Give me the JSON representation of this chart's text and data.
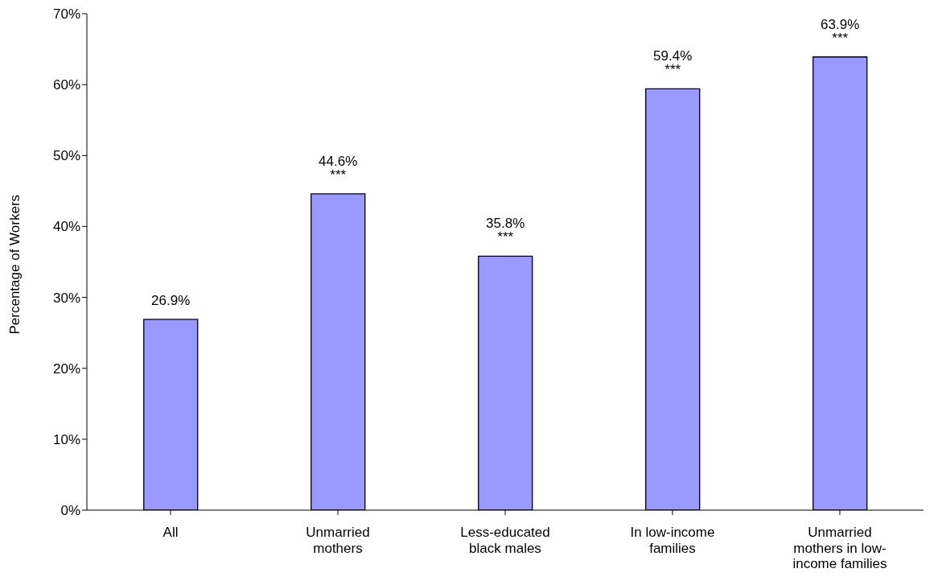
{
  "chart_data": {
    "type": "bar",
    "ylabel": "Percentage of Workers",
    "categories": [
      "All",
      "Unmarried mothers",
      "Less-educated black males",
      "In low-income families",
      "Unmarried mothers in low-income families"
    ],
    "values": [
      26.9,
      44.6,
      35.8,
      59.4,
      63.9
    ],
    "value_labels": [
      "26.9%",
      "44.6% ***",
      "35.8% ***",
      "59.4% ***",
      "63.9% ***"
    ],
    "color": "#9999ff",
    "ylim": [
      0,
      70
    ],
    "yticks": [
      {
        "value": 0,
        "label": "0%"
      },
      {
        "value": 10,
        "label": "10%"
      },
      {
        "value": 20,
        "label": "20%"
      },
      {
        "value": 30,
        "label": "30%"
      },
      {
        "value": 40,
        "label": "40%"
      },
      {
        "value": 50,
        "label": "50%"
      },
      {
        "value": 60,
        "label": "60%"
      },
      {
        "value": 70,
        "label": "70%"
      }
    ],
    "grid": false,
    "legend": false
  }
}
